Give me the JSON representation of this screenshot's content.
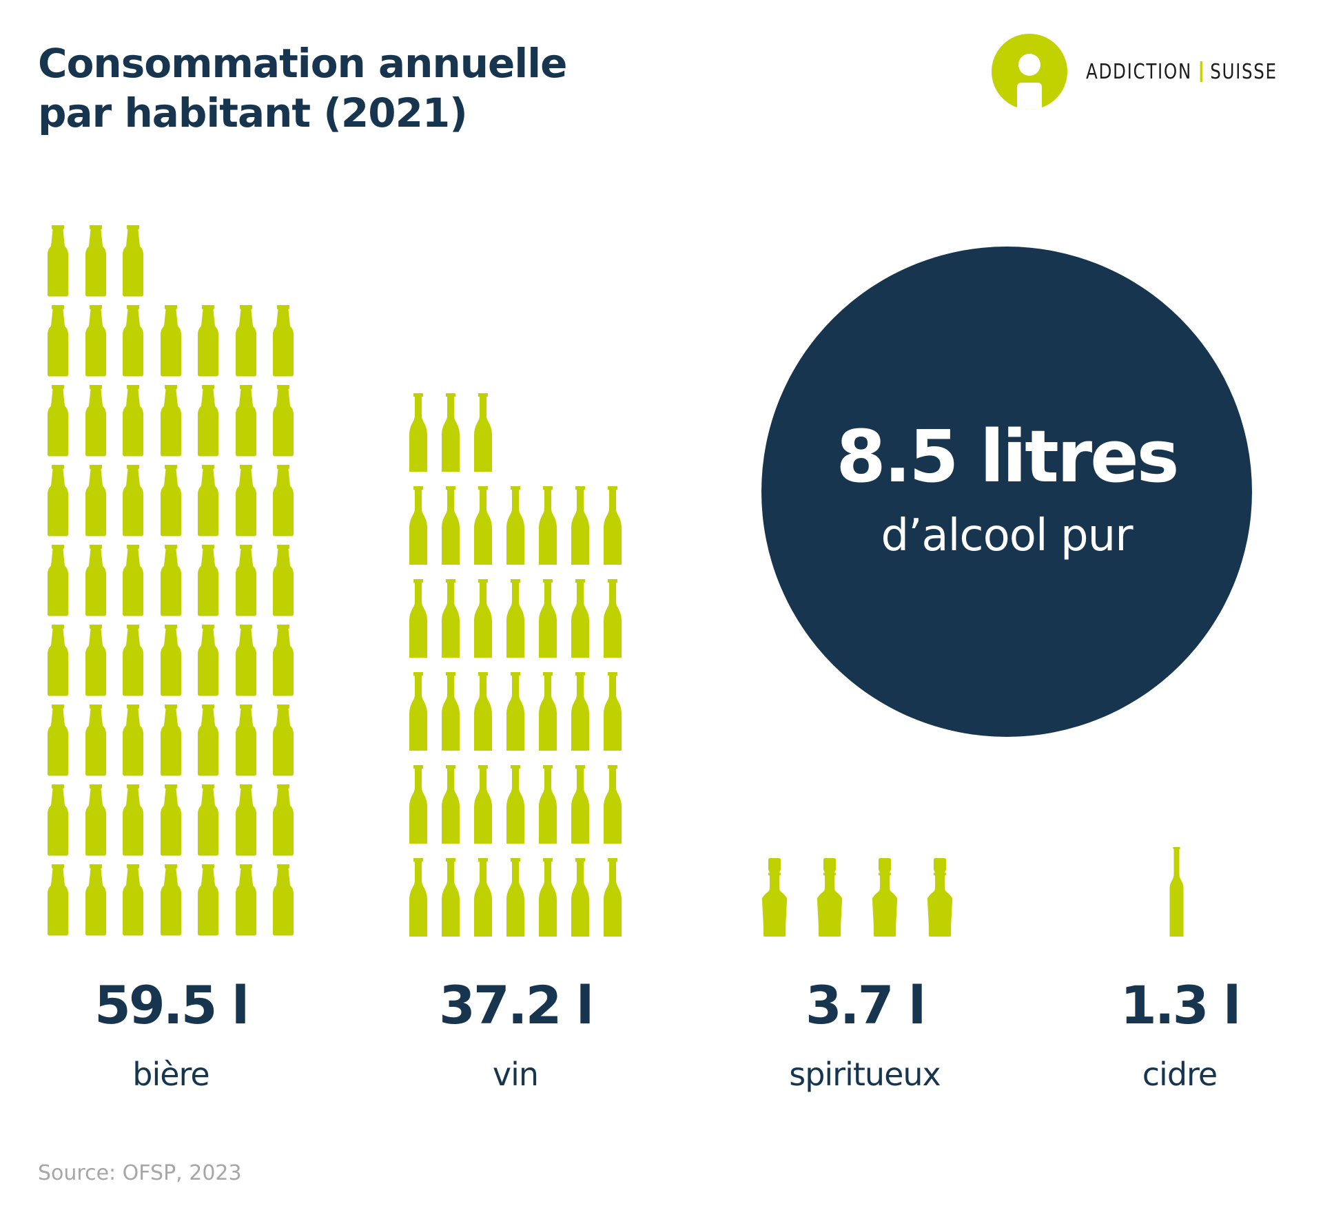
{
  "header": {
    "title_line1": "Consommation annuelle",
    "title_line2": "par habitant (2021)"
  },
  "logo": {
    "icon": "addiction-suisse-logo-icon",
    "word1": "ADDICTION",
    "word2": "SUISSE",
    "accent_color": "#c2d200"
  },
  "highlight": {
    "value": "8.5 litres",
    "caption": "d’alcool pur",
    "background_color": "#17354f"
  },
  "categories": [
    {
      "value": "59.5 l",
      "label": "bière",
      "icon": "beer-bottle-icon",
      "bottle_count": 59
    },
    {
      "value": "37.2 l",
      "label": "vin",
      "icon": "wine-bottle-icon",
      "bottle_count": 38
    },
    {
      "value": "3.7 l",
      "label": "spiritueux",
      "icon": "spirits-bottle-icon",
      "bottle_count": 4
    },
    {
      "value": "1.3 l",
      "label": "cidre",
      "icon": "cider-bottle-icon",
      "bottle_count": 1
    }
  ],
  "source": "Source: OFSP, 2023",
  "colors": {
    "bottle": "#bfd100",
    "text_dark": "#17354f",
    "source_text": "#a6a6a6"
  },
  "chart_data": {
    "type": "bar",
    "title": "Consommation annuelle par habitant (2021)",
    "categories": [
      "bière",
      "vin",
      "spiritueux",
      "cidre"
    ],
    "values": [
      59.5,
      37.2,
      3.7,
      1.3
    ],
    "unit": "l",
    "pictogram": "each bottle ≈ 1 litre",
    "annotation": "8.5 litres d’alcool pur",
    "xlabel": "",
    "ylabel": "",
    "grid": false,
    "legend": false,
    "source": "Source: OFSP, 2023"
  }
}
